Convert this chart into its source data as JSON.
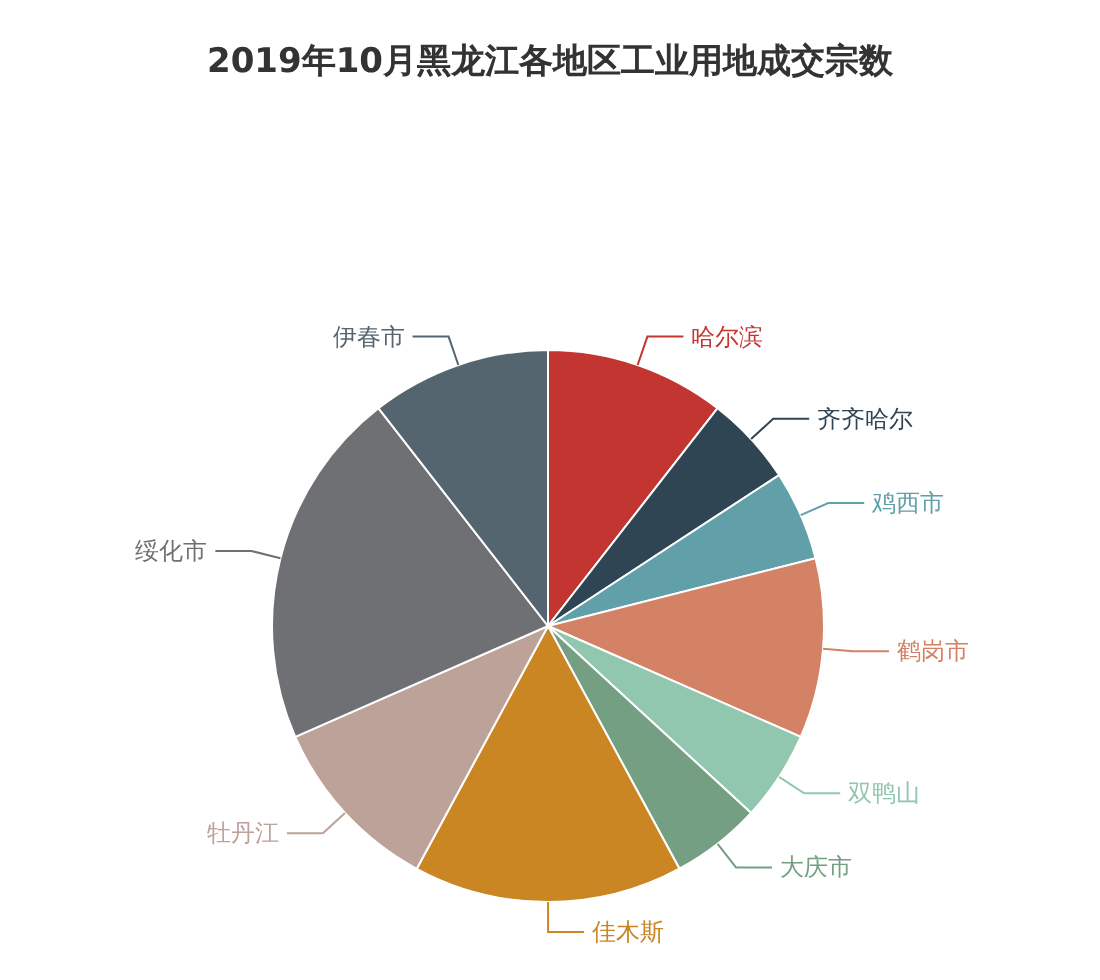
{
  "chart_data": {
    "type": "pie",
    "title": "2019年10月黑龙江各地区工业用地成交宗数",
    "categories": [
      "哈尔滨",
      "齐齐哈尔",
      "鸡西市",
      "鹤岗市",
      "双鸭山",
      "大庆市",
      "佳木斯",
      "牡丹江",
      "绥化市",
      "伊春市"
    ],
    "values": [
      10.53,
      5.26,
      5.26,
      10.53,
      5.26,
      5.26,
      15.79,
      10.53,
      21.05,
      10.53
    ],
    "colors": [
      "#c23531",
      "#2f4554",
      "#61a0a8",
      "#d48265",
      "#91c7ae",
      "#749f83",
      "#ca8622",
      "#bda29a",
      "#6e7074",
      "#546570"
    ]
  }
}
